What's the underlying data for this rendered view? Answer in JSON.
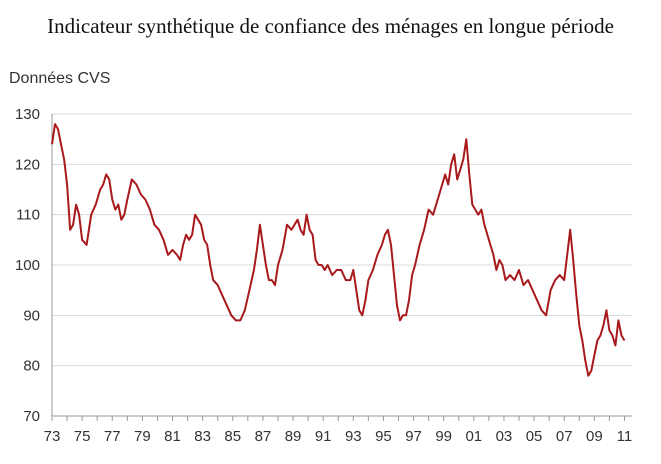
{
  "title": "Indicateur synthétique de confiance des ménages en longue période",
  "unit_label": "Données CVS",
  "chart_data": {
    "type": "line",
    "title": "Indicateur synthétique de confiance des ménages en longue période",
    "ylabel": "Données CVS",
    "xlabel": "",
    "xlim": [
      1973,
      2011.5
    ],
    "ylim": [
      70,
      130
    ],
    "yticks": [
      70,
      80,
      90,
      100,
      110,
      120,
      130
    ],
    "xticks": [
      "73",
      "75",
      "77",
      "79",
      "81",
      "83",
      "85",
      "87",
      "89",
      "91",
      "93",
      "95",
      "97",
      "99",
      "01",
      "03",
      "05",
      "07",
      "09",
      "11"
    ],
    "xtick_years": [
      1973,
      1975,
      1977,
      1979,
      1981,
      1983,
      1985,
      1987,
      1989,
      1991,
      1993,
      1995,
      1997,
      1999,
      2001,
      2003,
      2005,
      2007,
      2009,
      2011
    ],
    "grid": "horizontal",
    "line_color": "#a8191c",
    "series": [
      {
        "x": [
          1973.0,
          1973.2,
          1973.4,
          1973.6,
          1973.8,
          1974.0,
          1974.2,
          1974.4,
          1974.6,
          1974.8,
          1975.0,
          1975.3,
          1975.6,
          1975.9,
          1976.2,
          1976.4,
          1976.6,
          1976.8,
          1977.0,
          1977.2,
          1977.4,
          1977.6,
          1977.8,
          1978.0,
          1978.3,
          1978.6,
          1978.9,
          1979.2,
          1979.5,
          1979.8,
          1980.1,
          1980.4,
          1980.7,
          1981.0,
          1981.3,
          1981.5,
          1981.7,
          1981.9,
          1982.1,
          1982.3,
          1982.5,
          1982.7,
          1982.9,
          1983.1,
          1983.3,
          1983.5,
          1983.7,
          1984.0,
          1984.3,
          1984.6,
          1984.9,
          1985.2,
          1985.5,
          1985.8,
          1986.1,
          1986.4,
          1986.6,
          1986.8,
          1987.0,
          1987.2,
          1987.4,
          1987.6,
          1987.8,
          1988.0,
          1988.3,
          1988.6,
          1988.9,
          1989.1,
          1989.3,
          1989.5,
          1989.7,
          1989.9,
          1990.1,
          1990.3,
          1990.5,
          1990.7,
          1990.9,
          1991.1,
          1991.3,
          1991.6,
          1991.9,
          1992.2,
          1992.5,
          1992.8,
          1993.0,
          1993.2,
          1993.4,
          1993.6,
          1993.8,
          1994.0,
          1994.3,
          1994.6,
          1994.9,
          1995.1,
          1995.3,
          1995.5,
          1995.7,
          1995.9,
          1996.1,
          1996.3,
          1996.5,
          1996.7,
          1996.9,
          1997.1,
          1997.4,
          1997.7,
          1998.0,
          1998.3,
          1998.6,
          1998.9,
          1999.1,
          1999.3,
          1999.5,
          1999.7,
          1999.9,
          2000.1,
          2000.3,
          2000.5,
          2000.7,
          2000.9,
          2001.1,
          2001.3,
          2001.5,
          2001.7,
          2001.9,
          2002.1,
          2002.3,
          2002.5,
          2002.7,
          2002.9,
          2003.1,
          2003.4,
          2003.7,
          2004.0,
          2004.3,
          2004.6,
          2004.9,
          2005.2,
          2005.5,
          2005.8,
          2006.1,
          2006.4,
          2006.7,
          2007.0,
          2007.2,
          2007.4,
          2007.6,
          2007.8,
          2008.0,
          2008.2,
          2008.4,
          2008.6,
          2008.8,
          2009.0,
          2009.2,
          2009.4,
          2009.6,
          2009.8,
          2010.0,
          2010.2,
          2010.4,
          2010.6,
          2010.8,
          2011.0
        ],
        "values": [
          124,
          128,
          127,
          124,
          121,
          116,
          107,
          108,
          112,
          110,
          105,
          104,
          110,
          112,
          115,
          116,
          118,
          117,
          113,
          111,
          112,
          109,
          110,
          113,
          117,
          116,
          114,
          113,
          111,
          108,
          107,
          105,
          102,
          103,
          102,
          101,
          104,
          106,
          105,
          106,
          110,
          109,
          108,
          105,
          104,
          100,
          97,
          96,
          94,
          92,
          90,
          89,
          89,
          91,
          95,
          99,
          103,
          108,
          104,
          100,
          97,
          97,
          96,
          100,
          103,
          108,
          107,
          108,
          109,
          107,
          106,
          110,
          107,
          106,
          101,
          100,
          100,
          99,
          100,
          98,
          99,
          99,
          97,
          97,
          99,
          95,
          91,
          90,
          93,
          97,
          99,
          102,
          104,
          106,
          107,
          104,
          98,
          92,
          89,
          90,
          90,
          93,
          98,
          100,
          104,
          107,
          111,
          110,
          113,
          116,
          118,
          116,
          120,
          122,
          117,
          119,
          121,
          125,
          118,
          112,
          111,
          110,
          111,
          108,
          106,
          104,
          102,
          99,
          101,
          100,
          97,
          98,
          97,
          99,
          96,
          97,
          95,
          93,
          91,
          90,
          95,
          97,
          98,
          97,
          102,
          107,
          101,
          94,
          88,
          85,
          81,
          78,
          79,
          82,
          85,
          86,
          88,
          91,
          87,
          86,
          84,
          89,
          86,
          85
        ]
      }
    ]
  }
}
